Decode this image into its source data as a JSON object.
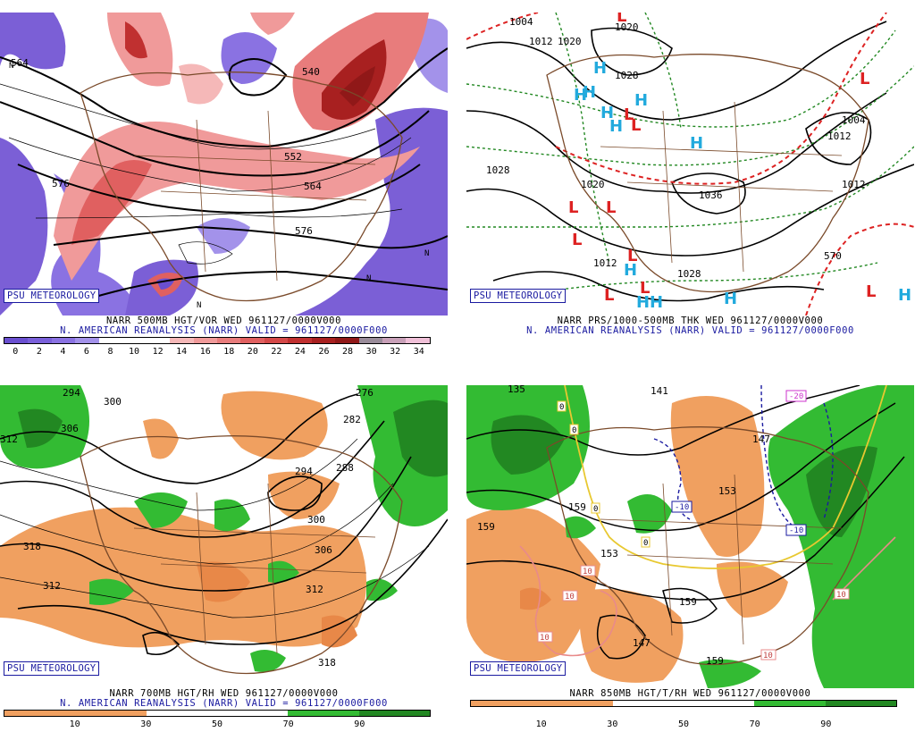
{
  "branding": "PSU METEOROLOGY",
  "colors": {
    "vort_neg": "#7b5fd6",
    "vort_pos": "#e06060",
    "rh_dry": "#f0a060",
    "rh_moist": "#33bb33",
    "high": "#22aadd",
    "low": "#dd2222",
    "thickness": "#228822",
    "freezing": "#dd2222"
  },
  "panels": [
    {
      "title": "NARR 500MB HGT/VOR WED 961127/0000V000",
      "subtitle": "N. AMERICAN REANALYSIS (NARR) VALID = 961127/0000F000",
      "scale": {
        "labels": [
          "0",
          "2",
          "4",
          "6",
          "8",
          "10",
          "12",
          "14",
          "16",
          "18",
          "20",
          "22",
          "24",
          "26",
          "28",
          "30",
          "32",
          "34"
        ],
        "colors": [
          "#6a4fd0",
          "#7a60da",
          "#8a72e2",
          "#a392ea",
          "#ffffff",
          "#ffffff",
          "#ffffff",
          "#f5b8b8",
          "#f09a9a",
          "#e87c7c",
          "#e06060",
          "#d44848",
          "#c03030",
          "#a82020",
          "#901818",
          "#9a8c9a",
          "#c8a0b8",
          "#f0c0d8"
        ]
      },
      "contours": [
        "540",
        "552",
        "564",
        "576",
        "576",
        "564"
      ]
    },
    {
      "title": "NARR PRS/1000-500MB THK WED 961127/0000V000",
      "subtitle": "N. AMERICAN REANALYSIS (NARR) VALID = 961127/0000F000",
      "contours": [
        "1004",
        "1012",
        "1020",
        "1020",
        "1028",
        "1028",
        "1020",
        "1036",
        "1012",
        "1028",
        "1004",
        "1012",
        "1012",
        "570"
      ],
      "highs": [
        "H",
        "H",
        "H",
        "H",
        "H",
        "H",
        "H",
        "H",
        "H",
        "H",
        "H",
        "H"
      ],
      "lows": [
        "L",
        "L",
        "L",
        "L",
        "L",
        "L",
        "L",
        "L",
        "L",
        "L",
        "L"
      ]
    },
    {
      "title": "NARR 700MB HGT/RH WED 961127/0000V000",
      "subtitle": "N. AMERICAN REANALYSIS (NARR) VALID = 961127/0000F000",
      "scale": {
        "labels": [
          "10",
          "30",
          "50",
          "70",
          "90"
        ],
        "colors": [
          "#f0a060",
          "#f0a060",
          "#ffffff",
          "#ffffff",
          "#33bb33",
          "#228822"
        ]
      },
      "contours": [
        "294",
        "300",
        "306",
        "312",
        "276",
        "282",
        "288",
        "294",
        "300",
        "306",
        "318",
        "312",
        "312",
        "318"
      ]
    },
    {
      "title": "NARR 850MB HGT/T/RH WED 961127/0000V000",
      "subtitle": "",
      "scale": {
        "labels": [
          "10",
          "30",
          "50",
          "70",
          "90"
        ],
        "colors": [
          "#f0a060",
          "#f0a060",
          "#ffffff",
          "#ffffff",
          "#33bb33",
          "#228822"
        ]
      },
      "contours": [
        "135",
        "141",
        "147",
        "153",
        "159",
        "159",
        "153",
        "159",
        "147",
        "159"
      ],
      "temp_boxes": [
        "0",
        "0",
        "0",
        "0",
        "-10",
        "-10",
        "-20",
        "10",
        "10",
        "10",
        "10",
        "10"
      ]
    }
  ]
}
